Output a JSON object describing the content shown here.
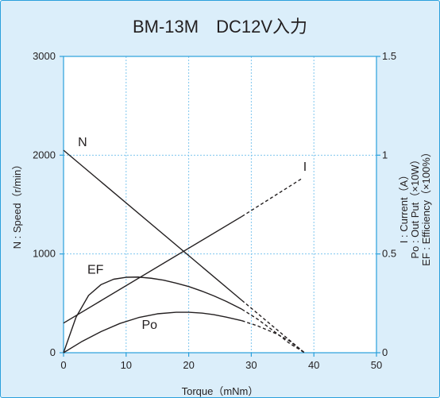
{
  "chart_data": {
    "type": "line",
    "title": "BM-13M　DC12V入力",
    "xlabel": "Torque（mNm）",
    "ylabel_left": "N : Speed（r/min）",
    "ylabel_right": [
      "I : Current（A）",
      "Po : Out Put（×10W）",
      "EF : Efficiency（×100%）"
    ],
    "xlim": [
      0,
      50
    ],
    "ylim_left": [
      0,
      3000
    ],
    "ylim_right": [
      0,
      1.5
    ],
    "x_ticks": [
      0,
      10,
      20,
      30,
      40,
      50
    ],
    "y_left_ticks": [
      0,
      1000,
      2000,
      3000
    ],
    "y_right_ticks": [
      0,
      0.5,
      1,
      1.5
    ],
    "y_right_tick_labels": [
      "0",
      "0.5",
      "1",
      "1.5"
    ],
    "grid": true,
    "series": [
      {
        "name": "N",
        "axis": "left",
        "solid": [
          [
            0,
            2050
          ],
          [
            28.5,
            530
          ]
        ],
        "dashed": [
          [
            28.5,
            530
          ],
          [
            38.5,
            0
          ]
        ]
      },
      {
        "name": "I",
        "axis": "right",
        "solid": [
          [
            0,
            0.15
          ],
          [
            28.5,
            0.69
          ]
        ],
        "dashed": [
          [
            28.5,
            0.69
          ],
          [
            38,
            0.88
          ]
        ]
      },
      {
        "name": "EF",
        "axis": "right",
        "solid": [
          [
            0,
            0
          ],
          [
            2,
            0.18
          ],
          [
            4,
            0.29
          ],
          [
            6,
            0.345
          ],
          [
            8,
            0.372
          ],
          [
            10,
            0.382
          ],
          [
            12,
            0.383
          ],
          [
            14,
            0.377
          ],
          [
            16,
            0.367
          ],
          [
            18,
            0.352
          ],
          [
            20,
            0.335
          ],
          [
            22,
            0.313
          ],
          [
            24,
            0.288
          ],
          [
            26,
            0.26
          ],
          [
            28.5,
            0.22
          ]
        ],
        "dashed": [
          [
            28.5,
            0.22
          ],
          [
            31,
            0.17
          ],
          [
            34,
            0.1
          ],
          [
            36,
            0.05
          ],
          [
            38.5,
            0
          ]
        ]
      },
      {
        "name": "Po",
        "axis": "right",
        "solid": [
          [
            0,
            0
          ],
          [
            3,
            0.058
          ],
          [
            6,
            0.107
          ],
          [
            9,
            0.148
          ],
          [
            12,
            0.178
          ],
          [
            15,
            0.197
          ],
          [
            18,
            0.205
          ],
          [
            20,
            0.205
          ],
          [
            22,
            0.201
          ],
          [
            24,
            0.193
          ],
          [
            26,
            0.18
          ],
          [
            28.5,
            0.162
          ]
        ],
        "dashed": [
          [
            28.5,
            0.162
          ],
          [
            31,
            0.136
          ],
          [
            34,
            0.096
          ],
          [
            36,
            0.062
          ],
          [
            38.5,
            0
          ]
        ]
      }
    ],
    "series_label_positions": {
      "N": [
        2.3,
        2090
      ],
      "I": [
        38.3,
        0.92
      ],
      "EF": [
        3.8,
        0.4
      ],
      "Po": [
        12.5,
        0.12
      ]
    },
    "colors": {
      "background": "#dbeefa",
      "plot_area": "#ffffff",
      "frame": "#2aa0dc",
      "grid": "#7fc6ee",
      "axis": "#2aa0dc",
      "line": "#231f20"
    }
  }
}
